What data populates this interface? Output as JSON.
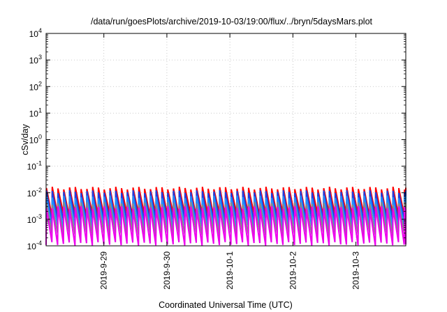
{
  "chart_data": {
    "type": "line",
    "title": "/data/run/goesPlots/archive/2019-10-03/19:00/flux/../bryn/5daysMars.plot",
    "xlabel": "Coordinated Universal Time (UTC)",
    "ylabel": "cSv/day",
    "yscale": "log",
    "ylim": [
      0.0001,
      10000
    ],
    "xlim": [
      "2019-09-28T02:00",
      "2019-10-03T19:00"
    ],
    "grid": true,
    "y_tick_labels": [
      {
        "base": "10",
        "exp": "-4"
      },
      {
        "base": "10",
        "exp": "-3"
      },
      {
        "base": "10",
        "exp": "-2"
      },
      {
        "base": "10",
        "exp": "-1"
      },
      {
        "base": "10",
        "exp": "0"
      },
      {
        "base": "10",
        "exp": "1"
      },
      {
        "base": "10",
        "exp": "2"
      },
      {
        "base": "10",
        "exp": "3"
      },
      {
        "base": "10",
        "exp": "4"
      }
    ],
    "x_tick_labels": [
      "2019-9-29",
      "2019-9-30",
      "2019-10-1",
      "2019-10-2",
      "2019-10-3"
    ],
    "x_tick_dates": [
      "2019-09-29",
      "2019-09-30",
      "2019-10-01",
      "2019-10-02",
      "2019-10-03"
    ],
    "sawtooth_period_hours": 2.2,
    "series": [
      {
        "color": "#ff0000",
        "peak": 0.015,
        "trough": 0.0015
      },
      {
        "color": "#1f3fe0",
        "peak": 0.011,
        "trough": 0.0009
      },
      {
        "color": "#1e90ff",
        "peak": 0.007,
        "trough": 0.0005
      },
      {
        "color": "#888888",
        "peak": 0.004,
        "trough": 0.00028
      },
      {
        "color": "#ee00ee",
        "peak": 0.0028,
        "trough": 0.00012
      }
    ]
  }
}
